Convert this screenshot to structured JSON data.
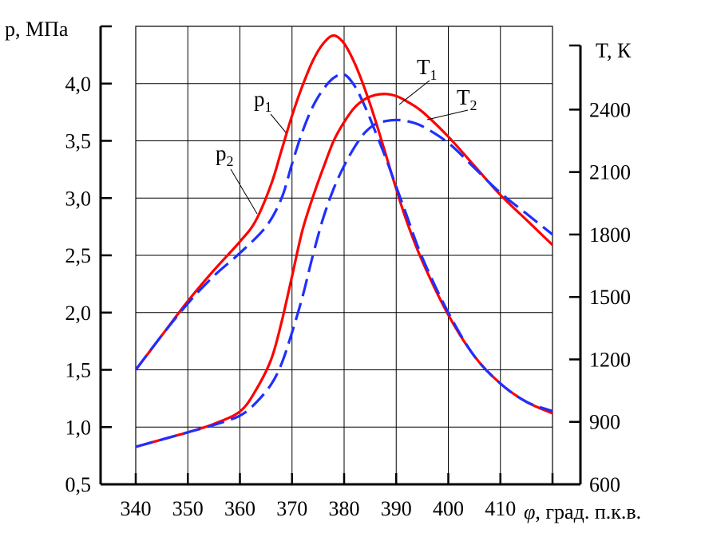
{
  "chart_data": {
    "type": "line",
    "x_axis": {
      "ticks": [
        "340",
        "350",
        "360",
        "370",
        "380",
        "390",
        "400",
        "410"
      ],
      "range": [
        340,
        420
      ],
      "label_symbol": "φ",
      "label_text": ", град. п.к.в."
    },
    "y_left": {
      "label": "p, МПа",
      "ticks": [
        "0,5",
        "1,0",
        "1,5",
        "2,0",
        "2,5",
        "3,0",
        "3,5",
        "4,0"
      ],
      "range": [
        0.5,
        4.5
      ]
    },
    "y_right": {
      "label": "T, К",
      "ticks": [
        "600",
        "900",
        "1200",
        "1500",
        "1800",
        "2100",
        "2400"
      ],
      "range": [
        600,
        2800
      ]
    },
    "grid": true,
    "series": [
      {
        "name": "p1",
        "label_main": "p",
        "label_sub": "1",
        "axis": "left",
        "color": "#ff0000",
        "style": "solid",
        "points": [
          [
            340,
            1.5
          ],
          [
            345,
            1.8
          ],
          [
            350,
            2.1
          ],
          [
            355,
            2.37
          ],
          [
            360,
            2.62
          ],
          [
            363,
            2.8
          ],
          [
            366,
            3.12
          ],
          [
            368,
            3.42
          ],
          [
            370,
            3.72
          ],
          [
            372,
            3.98
          ],
          [
            374,
            4.2
          ],
          [
            376,
            4.35
          ],
          [
            378,
            4.42
          ],
          [
            380,
            4.35
          ],
          [
            382,
            4.18
          ],
          [
            384,
            3.95
          ],
          [
            386,
            3.68
          ],
          [
            388,
            3.38
          ],
          [
            390,
            3.08
          ],
          [
            392,
            2.8
          ],
          [
            395,
            2.45
          ],
          [
            400,
            1.98
          ],
          [
            405,
            1.62
          ],
          [
            410,
            1.38
          ],
          [
            415,
            1.22
          ],
          [
            420,
            1.12
          ]
        ]
      },
      {
        "name": "p2",
        "label_main": "p",
        "label_sub": "2",
        "axis": "left",
        "color": "#1f2fff",
        "style": "dashed",
        "points": [
          [
            340,
            1.5
          ],
          [
            345,
            1.8
          ],
          [
            350,
            2.08
          ],
          [
            355,
            2.32
          ],
          [
            360,
            2.52
          ],
          [
            365,
            2.75
          ],
          [
            368,
            3.0
          ],
          [
            370,
            3.3
          ],
          [
            372,
            3.58
          ],
          [
            374,
            3.8
          ],
          [
            376,
            3.95
          ],
          [
            378,
            4.05
          ],
          [
            380,
            4.08
          ],
          [
            382,
            3.98
          ],
          [
            384,
            3.8
          ],
          [
            386,
            3.58
          ],
          [
            388,
            3.35
          ],
          [
            390,
            3.1
          ],
          [
            392,
            2.85
          ],
          [
            395,
            2.48
          ],
          [
            400,
            2.0
          ],
          [
            405,
            1.62
          ],
          [
            410,
            1.38
          ],
          [
            415,
            1.22
          ],
          [
            420,
            1.14
          ]
        ]
      },
      {
        "name": "T1",
        "label_main": "T",
        "label_sub": "1",
        "axis": "right",
        "color": "#ff0000",
        "style": "solid",
        "points": [
          [
            340,
            780
          ],
          [
            345,
            815
          ],
          [
            350,
            850
          ],
          [
            355,
            890
          ],
          [
            360,
            950
          ],
          [
            363,
            1050
          ],
          [
            366,
            1200
          ],
          [
            368,
            1380
          ],
          [
            370,
            1600
          ],
          [
            372,
            1820
          ],
          [
            374,
            1980
          ],
          [
            376,
            2120
          ],
          [
            378,
            2250
          ],
          [
            380,
            2340
          ],
          [
            382,
            2410
          ],
          [
            384,
            2450
          ],
          [
            386,
            2470
          ],
          [
            388,
            2475
          ],
          [
            390,
            2465
          ],
          [
            392,
            2440
          ],
          [
            395,
            2390
          ],
          [
            400,
            2270
          ],
          [
            405,
            2130
          ],
          [
            410,
            1990
          ],
          [
            415,
            1870
          ],
          [
            420,
            1750
          ]
        ]
      },
      {
        "name": "T2",
        "label_main": "T",
        "label_sub": "2",
        "axis": "right",
        "color": "#1f2fff",
        "style": "dashed",
        "points": [
          [
            340,
            780
          ],
          [
            345,
            815
          ],
          [
            350,
            850
          ],
          [
            355,
            885
          ],
          [
            360,
            930
          ],
          [
            363,
            990
          ],
          [
            366,
            1080
          ],
          [
            368,
            1180
          ],
          [
            370,
            1330
          ],
          [
            372,
            1500
          ],
          [
            374,
            1700
          ],
          [
            376,
            1880
          ],
          [
            378,
            2020
          ],
          [
            380,
            2130
          ],
          [
            382,
            2220
          ],
          [
            384,
            2290
          ],
          [
            386,
            2330
          ],
          [
            388,
            2345
          ],
          [
            390,
            2350
          ],
          [
            392,
            2345
          ],
          [
            395,
            2320
          ],
          [
            400,
            2240
          ],
          [
            405,
            2120
          ],
          [
            410,
            2000
          ],
          [
            415,
            1900
          ],
          [
            420,
            1800
          ]
        ]
      }
    ]
  }
}
